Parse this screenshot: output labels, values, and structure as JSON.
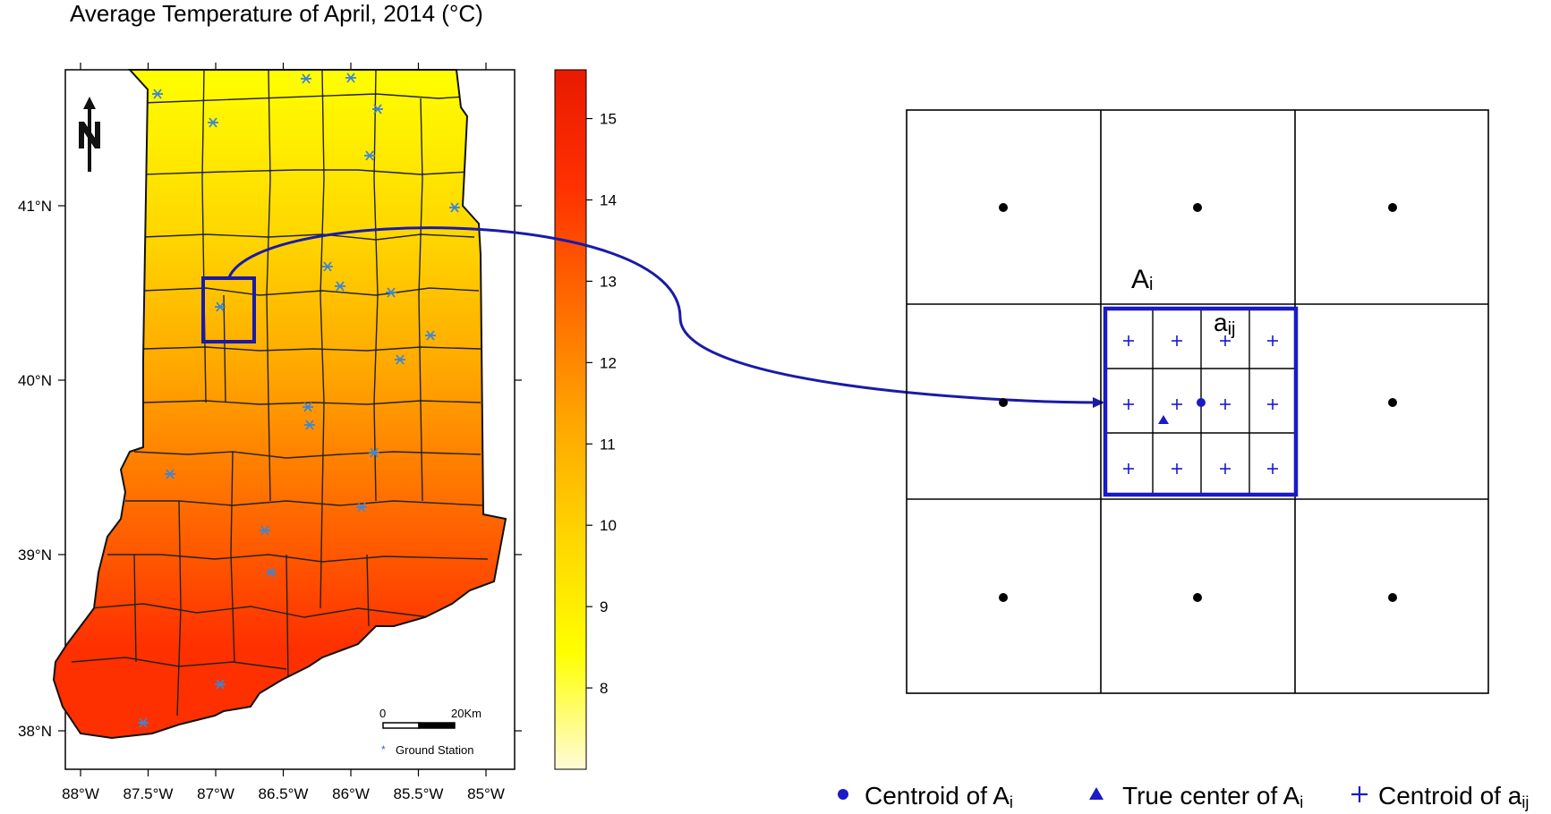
{
  "map": {
    "title": "Average Temperature of April, 2014 (°C)",
    "x_ticks": [
      "88°W",
      "87.5°W",
      "87°W",
      "86.5°W",
      "86°W",
      "85.5°W",
      "85°W"
    ],
    "y_ticks": [
      "41°N",
      "40°N",
      "39°N",
      "38°N"
    ],
    "scalebar": {
      "start": "0",
      "end": "20Km"
    },
    "legend": {
      "label": "Ground Station"
    },
    "highlight_color": "#1a1aa8",
    "station_color": "#3a86d8"
  },
  "colorbar": {
    "ticks": [
      "15",
      "14",
      "13",
      "12",
      "11",
      "10",
      "9",
      "8"
    ],
    "range": [
      7,
      15.6
    ],
    "colors": [
      "#fffbd8",
      "#ffff00",
      "#ffd500",
      "#ffa500",
      "#ff6a00",
      "#ff3000",
      "#e81a00"
    ]
  },
  "diagram": {
    "label_Ai": "A",
    "label_Ai_sub": "i",
    "label_aij": "a",
    "label_aij_sub": "ij",
    "outer_grid": "3x3",
    "inner_grid": "3x4",
    "accent": "#1a1ac8"
  },
  "legend": {
    "centroid_Ai": "Centroid of A",
    "centroid_Ai_sub": "i",
    "true_center": "True center of A",
    "true_center_sub": "i",
    "centroid_aij": "Centroid of a",
    "centroid_aij_sub": "ij"
  }
}
